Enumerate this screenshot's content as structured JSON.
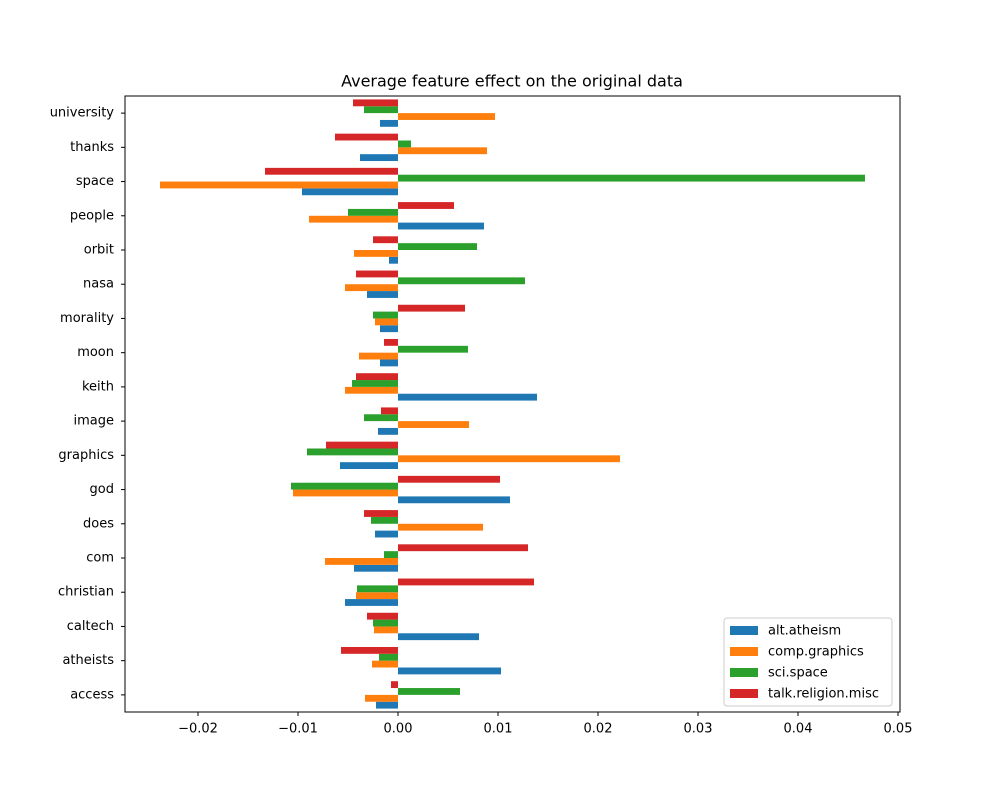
{
  "chart_data": {
    "type": "barh",
    "title": "Average feature effect on the original data",
    "categories": [
      "access",
      "atheists",
      "caltech",
      "christian",
      "com",
      "does",
      "god",
      "graphics",
      "image",
      "keith",
      "moon",
      "morality",
      "nasa",
      "orbit",
      "people",
      "space",
      "thanks",
      "university"
    ],
    "series": [
      {
        "name": "alt.atheism",
        "color": "#1f77b4",
        "values": [
          -0.0022,
          0.0103,
          0.0081,
          -0.0053,
          -0.0044,
          -0.0023,
          0.0112,
          -0.0058,
          -0.002,
          0.0139,
          -0.0018,
          -0.0018,
          -0.0031,
          -0.0009,
          0.0086,
          -0.0096,
          -0.0038,
          -0.0018
        ]
      },
      {
        "name": "comp.graphics",
        "color": "#ff7f0e",
        "values": [
          -0.0033,
          -0.0026,
          -0.0024,
          -0.0042,
          -0.0073,
          0.0085,
          -0.0105,
          0.0222,
          0.0071,
          -0.0053,
          -0.0039,
          -0.0023,
          -0.0053,
          -0.0044,
          -0.0089,
          -0.0238,
          0.0089,
          0.0097
        ]
      },
      {
        "name": "sci.space",
        "color": "#2ca02c",
        "values": [
          0.0062,
          -0.0019,
          -0.0025,
          -0.0041,
          -0.0014,
          -0.0027,
          -0.0107,
          -0.0091,
          -0.0034,
          -0.0046,
          0.007,
          -0.0025,
          0.0127,
          0.0079,
          -0.005,
          0.0467,
          0.0013,
          -0.0034
        ]
      },
      {
        "name": "talk.religion.misc",
        "color": "#d62728",
        "values": [
          -0.0007,
          -0.0057,
          -0.0031,
          0.0136,
          0.013,
          -0.0034,
          0.0102,
          -0.0072,
          -0.0017,
          -0.0042,
          -0.0014,
          0.0067,
          -0.0042,
          -0.0025,
          0.0056,
          -0.0133,
          -0.0063,
          -0.0045
        ]
      }
    ],
    "xlim": [
      -0.0273,
      0.0502
    ],
    "xticks": [
      {
        "value": -0.02,
        "label": "−0.02"
      },
      {
        "value": -0.01,
        "label": "−0.01"
      },
      {
        "value": 0,
        "label": "0.00"
      },
      {
        "value": 0.01,
        "label": "0.01"
      },
      {
        "value": 0.02,
        "label": "0.02"
      },
      {
        "value": 0.03,
        "label": "0.03"
      },
      {
        "value": 0.04,
        "label": "0.04"
      },
      {
        "value": 0.05,
        "label": "0.05"
      }
    ],
    "legend": "lower right"
  }
}
